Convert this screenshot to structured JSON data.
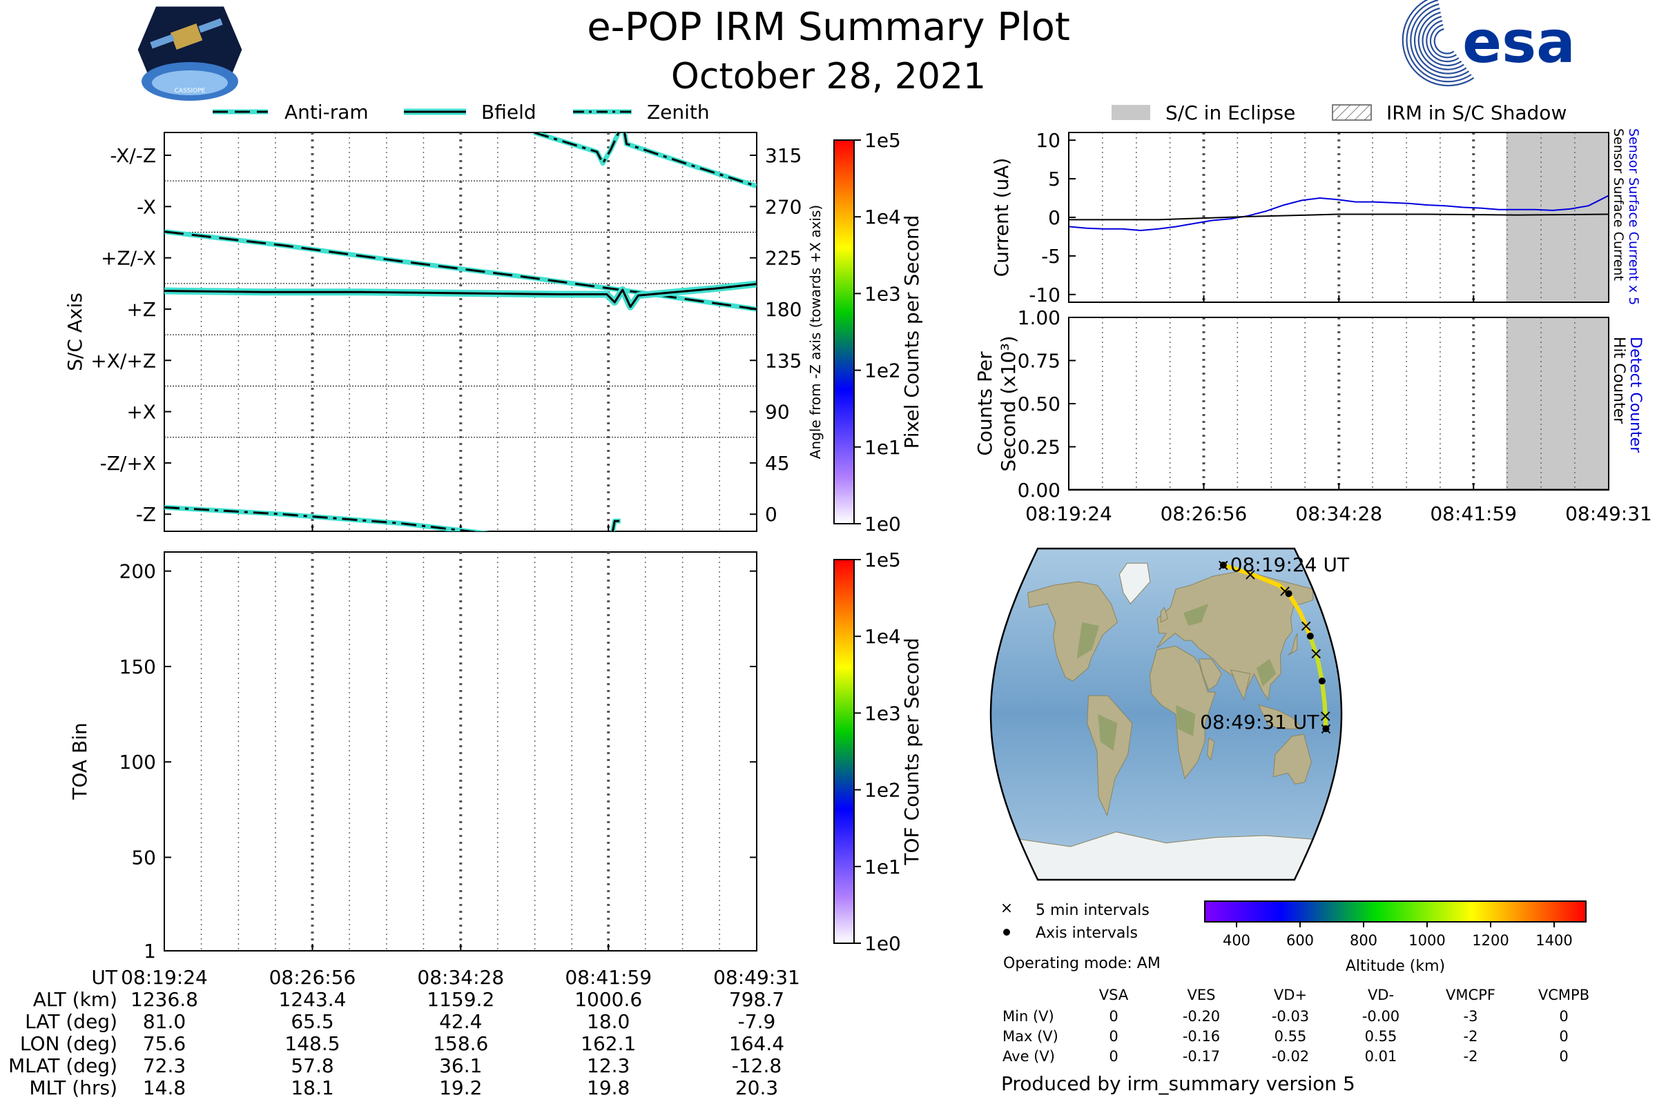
{
  "title": "e-POP IRM Summary Plot",
  "date": "October 28, 2021",
  "esa_logo_text": "esa",
  "cassiope_logo_text": "CASSIOPE",
  "legend_top_left": [
    {
      "label": "Anti-ram",
      "style": "dashed"
    },
    {
      "label": "Bfield",
      "style": "solid"
    },
    {
      "label": "Zenith",
      "style": "dashdot"
    }
  ],
  "legend_top_right": [
    {
      "label": "S/C in Eclipse"
    },
    {
      "label": "IRM in S/C Shadow"
    }
  ],
  "colors": {
    "trace_fill": "#40e0d0",
    "eclipse": "#c8c8c8",
    "blue": "#0000dd",
    "orbit_track": "#ffd700"
  },
  "chart_data": [
    {
      "id": "sc_axis",
      "type": "line",
      "ylabel": "S/C Axis",
      "y2label": "Angle from -Z axis (towards +X axis)",
      "left_tick_labels": [
        "-X/-Z",
        "-X",
        "+Z/-X",
        "+Z",
        "+X/+Z",
        "+X",
        "-Z/+X",
        "-Z"
      ],
      "right_tick_labels": [
        "315",
        "270",
        "225",
        "180",
        "135",
        "90",
        "45",
        "0"
      ],
      "ylim": [
        -15,
        335
      ],
      "x_minutes": [
        0,
        30.12
      ],
      "series": [
        {
          "name": "Anti-ram",
          "points": [
            [
              0,
              248
            ],
            [
              6,
              236
            ],
            [
              12,
              222
            ],
            [
              18,
              209
            ],
            [
              24,
              195
            ],
            [
              30.1,
              180
            ]
          ]
        },
        {
          "name": "Bfield",
          "points": [
            [
              0,
              196
            ],
            [
              5,
              195
            ],
            [
              10,
              195
            ],
            [
              15,
              194
            ],
            [
              20,
              193
            ],
            [
              22.5,
              193
            ],
            [
              22.9,
              186
            ],
            [
              23.3,
              197
            ],
            [
              23.7,
              182
            ],
            [
              24.1,
              192
            ],
            [
              26,
              195
            ],
            [
              28,
              198
            ],
            [
              30.1,
              202
            ]
          ]
        },
        {
          "name": "Zenith",
          "points": [
            [
              0,
              6
            ],
            [
              6,
              0
            ],
            [
              12,
              -8
            ],
            [
              18,
              -20
            ]
          ]
        },
        {
          "name": "Zenith (wrapped)",
          "points": [
            [
              18.8,
              335
            ],
            [
              20.5,
              326
            ],
            [
              22,
              318
            ],
            [
              22.3,
              308
            ],
            [
              22.7,
              320
            ],
            [
              23.1,
              335
            ]
          ]
        },
        {
          "name": "Zenith (wrapped 2)",
          "points": [
            [
              23.4,
              335
            ],
            [
              23.5,
              325
            ],
            [
              27,
              305
            ],
            [
              30.1,
              288
            ]
          ]
        },
        {
          "name": "Zenith (short)",
          "points": [
            [
              22.8,
              -15
            ],
            [
              22.9,
              -6
            ],
            [
              23.2,
              -6
            ]
          ]
        }
      ]
    },
    {
      "id": "pixel_colorbar",
      "type": "heatmap",
      "label": "Pixel Counts per Second",
      "ticks": [
        "1e5",
        "1e4",
        "1e3",
        "1e2",
        "1e1",
        "1e0"
      ]
    },
    {
      "id": "toa",
      "type": "heatmap",
      "ylabel": "TOA Bin",
      "ylim": [
        1,
        210
      ],
      "y_ticks": [
        "200",
        "150",
        "100",
        "50",
        "1"
      ],
      "values": []
    },
    {
      "id": "tof_colorbar",
      "type": "heatmap",
      "label": "TOF Counts per Second",
      "ticks": [
        "1e5",
        "1e4",
        "1e3",
        "1e2",
        "1e1",
        "1e0"
      ]
    },
    {
      "id": "current",
      "type": "line",
      "ylabel": "Current (uA)",
      "ylim": [
        -11,
        11
      ],
      "y_ticks": [
        "10",
        "5",
        "0",
        "-5",
        "-10"
      ],
      "right_labels": [
        "Sensor Surface Current x 5",
        "Sensor Surface Current"
      ],
      "eclipse_minutes": [
        24.4,
        30.12
      ],
      "series": [
        {
          "name": "Sensor Surface Current x 5",
          "color": "#0000dd",
          "points": [
            [
              0,
              -1.2
            ],
            [
              1,
              -1.4
            ],
            [
              2,
              -1.5
            ],
            [
              3,
              -1.5
            ],
            [
              4,
              -1.7
            ],
            [
              5,
              -1.5
            ],
            [
              6,
              -1.2
            ],
            [
              7,
              -0.8
            ],
            [
              8,
              -0.4
            ],
            [
              9,
              -0.2
            ],
            [
              10,
              0.2
            ],
            [
              11,
              0.8
            ],
            [
              12,
              1.6
            ],
            [
              13,
              2.2
            ],
            [
              14,
              2.5
            ],
            [
              15,
              2.3
            ],
            [
              16,
              2.0
            ],
            [
              17,
              2.0
            ],
            [
              18,
              1.9
            ],
            [
              19,
              1.8
            ],
            [
              20,
              1.6
            ],
            [
              21,
              1.5
            ],
            [
              22,
              1.3
            ],
            [
              23,
              1.2
            ],
            [
              24,
              1.0
            ],
            [
              25,
              1.0
            ],
            [
              26,
              1.0
            ],
            [
              27,
              0.9
            ],
            [
              28,
              1.1
            ],
            [
              29,
              1.5
            ],
            [
              30.1,
              2.8
            ]
          ]
        },
        {
          "name": "Sensor Surface Current",
          "color": "#000000",
          "points": [
            [
              0,
              -0.3
            ],
            [
              5,
              -0.3
            ],
            [
              10,
              0.1
            ],
            [
              15,
              0.4
            ],
            [
              20,
              0.4
            ],
            [
              25,
              0.3
            ],
            [
              30.1,
              0.4
            ]
          ]
        }
      ]
    },
    {
      "id": "counts",
      "type": "line",
      "ylabel": "Counts Per Second (x10³)",
      "ylabel_line1": "Counts Per",
      "ylabel_line2": "Second (x10³)",
      "ylim": [
        0,
        1
      ],
      "y_ticks": [
        "1.00",
        "0.75",
        "0.50",
        "0.25",
        "0.00"
      ],
      "right_labels": [
        "Detect Counter",
        "Hit Counter"
      ],
      "series": [
        {
          "name": "Detect Counter",
          "color": "#0000dd",
          "points": [
            [
              0,
              0
            ],
            [
              30.1,
              0
            ]
          ]
        },
        {
          "name": "Hit Counter",
          "color": "#000000",
          "points": [
            [
              0,
              0
            ],
            [
              30.1,
              0
            ]
          ]
        }
      ]
    }
  ],
  "x_tick_labels": [
    "08:19:24",
    "08:26:56",
    "08:34:28",
    "08:41:59",
    "08:49:31"
  ],
  "ephemeris": {
    "row_labels": [
      "UT",
      "ALT (km)",
      "LAT (deg)",
      "LON (deg)",
      "MLAT (deg)",
      "MLT (hrs)"
    ],
    "columns": [
      [
        "08:19:24",
        "1236.8",
        "81.0",
        "75.6",
        "72.3",
        "14.8"
      ],
      [
        "08:26:56",
        "1243.4",
        "65.5",
        "148.5",
        "57.8",
        "18.1"
      ],
      [
        "08:34:28",
        "1159.2",
        "42.4",
        "158.6",
        "36.1",
        "19.2"
      ],
      [
        "08:41:59",
        "1000.6",
        "18.0",
        "162.1",
        "12.3",
        "19.8"
      ],
      [
        "08:49:31",
        "798.7",
        "-7.9",
        "164.4",
        "-12.8",
        "20.3"
      ]
    ]
  },
  "map": {
    "start_label": "08:19:24 UT",
    "end_label": "08:49:31 UT",
    "legend": [
      "5 min intervals",
      "Axis intervals"
    ],
    "altitude_ticks": [
      "400",
      "600",
      "800",
      "1000",
      "1200",
      "1400"
    ],
    "altitude_label": "Altitude (km)",
    "track_lonlat": [
      [
        75.6,
        81.0
      ],
      [
        110,
        76
      ],
      [
        140,
        70
      ],
      [
        148.5,
        65.5
      ],
      [
        155,
        55
      ],
      [
        158.6,
        42.4
      ],
      [
        161,
        30
      ],
      [
        162.1,
        18.0
      ],
      [
        163,
        5
      ],
      [
        164.4,
        -7.9
      ]
    ],
    "x_marks": [
      [
        108,
        76
      ],
      [
        145,
        67
      ],
      [
        157,
        48
      ],
      [
        160.5,
        33
      ],
      [
        163.5,
        -1
      ]
    ],
    "dots": [
      [
        148.5,
        65.5
      ],
      [
        158.6,
        42.4
      ],
      [
        162.1,
        18.0
      ]
    ]
  },
  "operating_mode": "Operating mode: AM",
  "voltage_table": {
    "headers": [
      "VSA",
      "VES",
      "VD+",
      "VD-",
      "VMCPF",
      "VCMPB"
    ],
    "rows": [
      {
        "label": "Min (V)",
        "values": [
          "0",
          "-0.20",
          "-0.03",
          "-0.00",
          "-3",
          "0"
        ]
      },
      {
        "label": "Max (V)",
        "values": [
          "0",
          "-0.16",
          "0.55",
          "0.55",
          "-2",
          "0"
        ]
      },
      {
        "label": "Ave (V)",
        "values": [
          "0",
          "-0.17",
          "-0.02",
          "0.01",
          "-2",
          "0"
        ]
      }
    ]
  },
  "footer": "Produced by irm_summary version 5"
}
